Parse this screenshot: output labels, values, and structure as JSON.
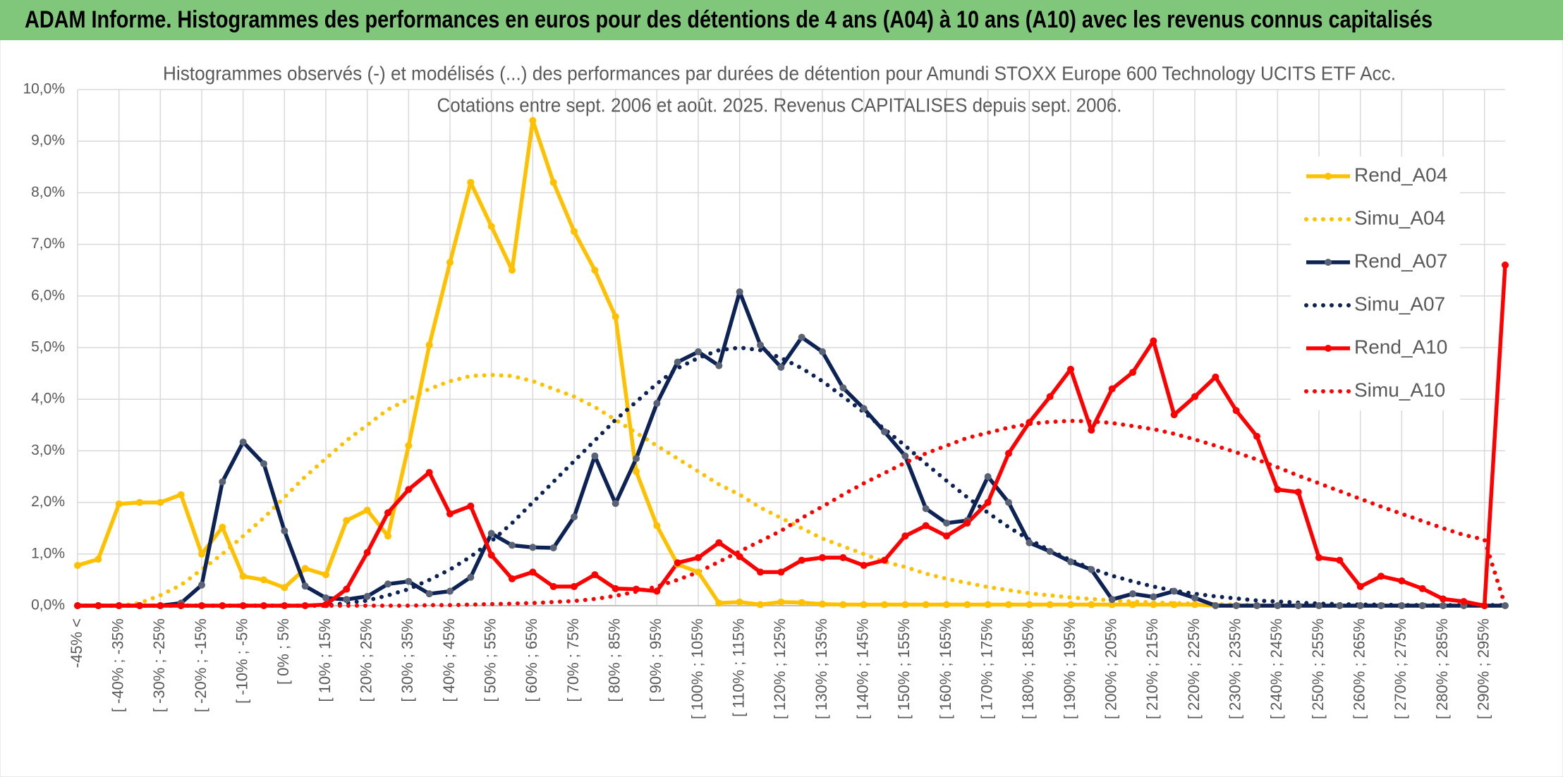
{
  "header": {
    "title": "ADAM Informe. Histogrammes des performances en euros pour des détentions de 4 ans (A04) à 10 ans (A10) avec les revenus connus capitalisés"
  },
  "chart_data": {
    "type": "line",
    "title": "Histogrammes observés (-) et modélisés (...) des performances par durées de détention pour Amundi STOXX Europe 600 Technology UCITS ETF Acc.",
    "subtitle": "Cotations entre sept. 2006 et août. 2025. Revenus CAPITALISES depuis sept. 2006.",
    "categories": [
      "-45% <",
      null,
      "[ -40% ; -35%",
      null,
      "[ -30% ; -25%",
      null,
      "[ -20% ; -15%",
      null,
      "[ -10% ; -5%",
      null,
      "[ 0% ; 5%",
      null,
      "[ 10% ; 15%",
      null,
      "[ 20% ; 25%",
      null,
      "[ 30% ; 35%",
      null,
      "[ 40% ; 45%",
      null,
      "[ 50% ; 55%",
      null,
      "[ 60% ; 65%",
      null,
      "[ 70% ; 75%",
      null,
      "[ 80% ; 85%",
      null,
      "[ 90% ; 95%",
      null,
      "[ 100% ; 105%",
      null,
      "[ 110% ; 115%",
      null,
      "[ 120% ; 125%",
      null,
      "[ 130% ; 135%",
      null,
      "[ 140% ; 145%",
      null,
      "[ 150% ; 155%",
      null,
      "[ 160% ; 165%",
      null,
      "[ 170% ; 175%",
      null,
      "[ 180% ; 185%",
      null,
      "[ 190% ; 195%",
      null,
      "[ 200% ; 205%",
      null,
      "[ 210% ; 215%",
      null,
      "[ 220% ; 225%",
      null,
      "[ 230% ; 235%",
      null,
      "[ 240% ; 245%",
      null,
      "[ 250% ; 255%",
      null,
      "[ 260% ; 265%",
      null,
      "[ 270% ; 275%",
      null,
      "[ 280% ; 285%",
      null,
      "[ 290% ; 295%",
      null
    ],
    "series": [
      {
        "name": "Rend_A04",
        "color": "#ffc000",
        "line_style": "solid",
        "marker_color": "#ffc000",
        "values": [
          0.78,
          0.9,
          1.97,
          2.0,
          2.0,
          2.15,
          1.0,
          1.52,
          0.57,
          0.5,
          0.35,
          0.72,
          0.6,
          1.65,
          1.85,
          1.35,
          3.1,
          5.05,
          6.65,
          8.2,
          7.35,
          6.5,
          9.4,
          8.2,
          7.25,
          6.5,
          5.6,
          2.6,
          1.55,
          0.8,
          0.65,
          0.05,
          0.07,
          0.02,
          0.07,
          0.06,
          0.03,
          0.02,
          0.02,
          0.02,
          0.02,
          0.02,
          0.02,
          0.02,
          0.02,
          0.02,
          0.02,
          0.02,
          0.02,
          0.02,
          0.02,
          0.02,
          0.02,
          0.02,
          0.02,
          0,
          0,
          0,
          0,
          0,
          0,
          0,
          0,
          0,
          0,
          0,
          0,
          0,
          0,
          0
        ]
      },
      {
        "name": "Simu_A04",
        "color": "#ffc000",
        "line_style": "dotted",
        "values": [
          0,
          0,
          0,
          0.05,
          0.2,
          0.4,
          0.7,
          1.0,
          1.35,
          1.7,
          2.1,
          2.5,
          2.85,
          3.2,
          3.5,
          3.8,
          4.0,
          4.2,
          4.35,
          4.45,
          4.47,
          4.45,
          4.35,
          4.2,
          4.05,
          3.85,
          3.6,
          3.35,
          3.1,
          2.85,
          2.6,
          2.35,
          2.15,
          1.9,
          1.7,
          1.5,
          1.3,
          1.15,
          1.0,
          0.85,
          0.75,
          0.62,
          0.52,
          0.44,
          0.36,
          0.3,
          0.24,
          0.2,
          0.16,
          0.13,
          0.1,
          0.08,
          0.06,
          0.05,
          0.04,
          0.03,
          0.02,
          0.01,
          0.01,
          0.01,
          0.01,
          0.01,
          0.01,
          0,
          0,
          0,
          0,
          0,
          0,
          0
        ]
      },
      {
        "name": "Rend_A07",
        "color": "#0d2356",
        "line_style": "solid",
        "marker_color": "#5a6375",
        "values": [
          0,
          0,
          0,
          0,
          0,
          0.05,
          0.4,
          2.4,
          3.17,
          2.75,
          1.45,
          0.38,
          0.15,
          0.12,
          0.18,
          0.42,
          0.47,
          0.23,
          0.28,
          0.55,
          1.4,
          1.17,
          1.13,
          1.12,
          1.72,
          2.9,
          1.98,
          2.85,
          3.92,
          4.72,
          4.92,
          4.65,
          6.08,
          5.05,
          4.62,
          5.2,
          4.92,
          4.22,
          3.82,
          3.37,
          2.9,
          1.88,
          1.6,
          1.65,
          2.5,
          2.0,
          1.22,
          1.05,
          0.85,
          0.7,
          0.12,
          0.23,
          0.17,
          0.28,
          0.15,
          0,
          0,
          0,
          0,
          0,
          0,
          0,
          0,
          0,
          0,
          0,
          0,
          0,
          0,
          0
        ]
      },
      {
        "name": "Simu_A07",
        "color": "#0d2356",
        "line_style": "dotted",
        "values": [
          0,
          0,
          0,
          0,
          0,
          0,
          0,
          0,
          0,
          0,
          0,
          0,
          0,
          0.05,
          0.1,
          0.2,
          0.32,
          0.5,
          0.7,
          0.95,
          1.25,
          1.6,
          2.0,
          2.4,
          2.8,
          3.2,
          3.6,
          3.95,
          4.3,
          4.6,
          4.8,
          4.95,
          5.0,
          4.95,
          4.8,
          4.6,
          4.35,
          4.05,
          3.75,
          3.42,
          3.1,
          2.75,
          2.42,
          2.1,
          1.8,
          1.52,
          1.28,
          1.07,
          0.88,
          0.72,
          0.58,
          0.47,
          0.37,
          0.29,
          0.23,
          0.18,
          0.14,
          0.1,
          0.08,
          0.06,
          0.04,
          0.03,
          0.02,
          0.02,
          0.01,
          0.01,
          0.01,
          0.01,
          0.01,
          0.01
        ]
      },
      {
        "name": "Rend_A10",
        "color": "#ff0000",
        "line_style": "solid",
        "marker_color": "#ff0000",
        "values": [
          0,
          0,
          0,
          0,
          0,
          0,
          0,
          0,
          0,
          0,
          0,
          0,
          0.02,
          0.32,
          1.03,
          1.8,
          2.25,
          2.58,
          1.78,
          1.93,
          0.98,
          0.52,
          0.65,
          0.37,
          0.37,
          0.6,
          0.33,
          0.32,
          0.28,
          0.83,
          0.93,
          1.22,
          0.95,
          0.65,
          0.65,
          0.88,
          0.93,
          0.93,
          0.78,
          0.88,
          1.35,
          1.55,
          1.35,
          1.6,
          2.0,
          2.95,
          3.55,
          4.05,
          4.58,
          3.4,
          4.2,
          4.52,
          5.13,
          3.7,
          4.05,
          4.43,
          3.78,
          3.28,
          2.25,
          2.2,
          0.93,
          0.88,
          0.37,
          0.57,
          0.48,
          0.33,
          0.13,
          0.08,
          0.0,
          6.6
        ]
      },
      {
        "name": "Simu_A10",
        "color": "#ff0000",
        "line_style": "dotted",
        "values": [
          0,
          0,
          0,
          0,
          0,
          0,
          0,
          0,
          0,
          0,
          0,
          0,
          0,
          0,
          0,
          0,
          0,
          0.01,
          0.01,
          0.02,
          0.03,
          0.04,
          0.05,
          0.07,
          0.09,
          0.13,
          0.19,
          0.27,
          0.37,
          0.5,
          0.65,
          0.85,
          1.05,
          1.25,
          1.45,
          1.7,
          1.92,
          2.15,
          2.37,
          2.57,
          2.77,
          2.95,
          3.1,
          3.25,
          3.35,
          3.45,
          3.52,
          3.56,
          3.58,
          3.57,
          3.54,
          3.48,
          3.42,
          3.33,
          3.22,
          3.1,
          2.97,
          2.83,
          2.68,
          2.52,
          2.37,
          2.22,
          2.07,
          1.92,
          1.78,
          1.64,
          1.5,
          1.37,
          1.28,
          0
        ]
      }
    ],
    "ylim": [
      0,
      10
    ],
    "yticks": [
      {
        "value": 0,
        "label": "0,0%"
      },
      {
        "value": 1,
        "label": "1,0%"
      },
      {
        "value": 2,
        "label": "2,0%"
      },
      {
        "value": 3,
        "label": "3,0%"
      },
      {
        "value": 4,
        "label": "4,0%"
      },
      {
        "value": 5,
        "label": "5,0%"
      },
      {
        "value": 6,
        "label": "6,0%"
      },
      {
        "value": 7,
        "label": "7,0%"
      },
      {
        "value": 8,
        "label": "8,0%"
      },
      {
        "value": 9,
        "label": "9,0%"
      },
      {
        "value": 10,
        "label": "10,0%"
      }
    ],
    "grid": true,
    "legend_position": "right"
  }
}
